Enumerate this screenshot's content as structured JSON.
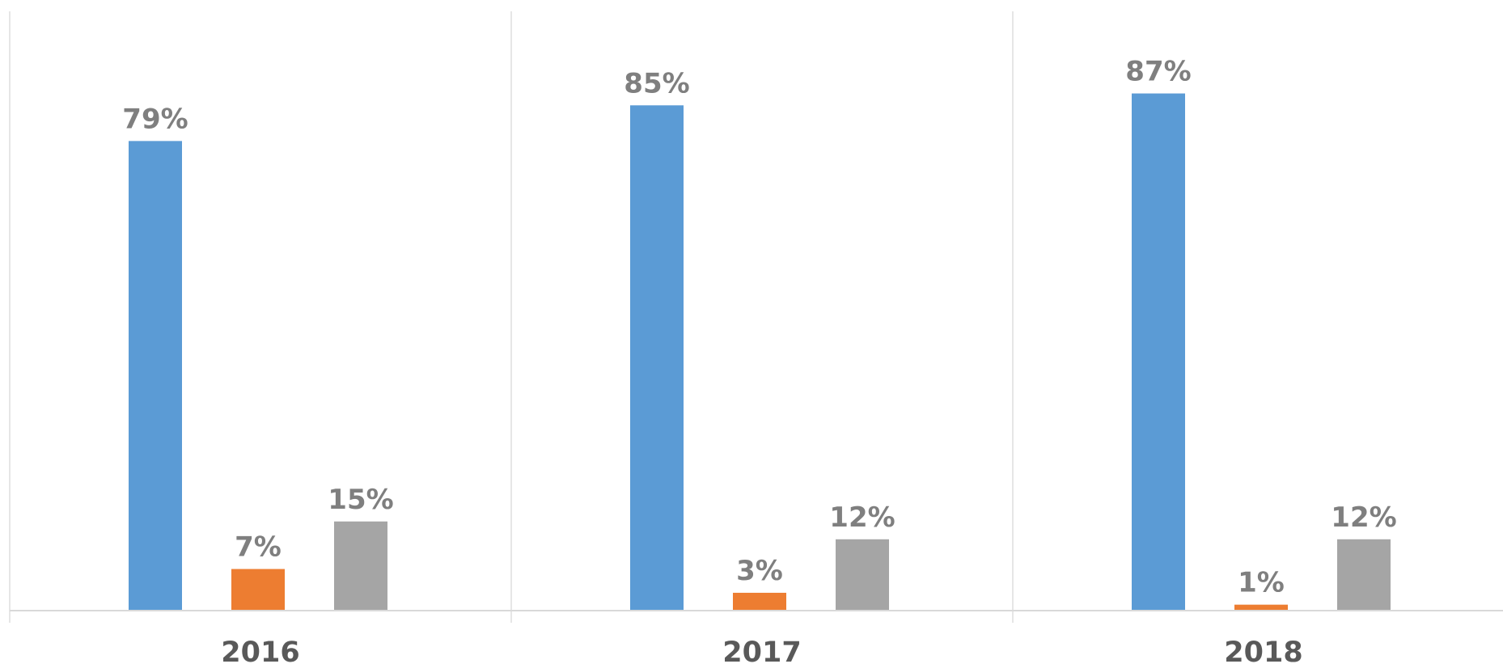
{
  "chart_data": {
    "type": "bar",
    "categories": [
      "2016",
      "2017",
      "2018"
    ],
    "series": [
      {
        "color": "#5B9BD5",
        "values": [
          79,
          85,
          87
        ]
      },
      {
        "color": "#ED7D31",
        "values": [
          7,
          3,
          1
        ]
      },
      {
        "color": "#A5A5A5",
        "values": [
          15,
          12,
          12
        ]
      }
    ],
    "data_labels": [
      [
        "79%",
        "85%",
        "87%"
      ],
      [
        "7%",
        "3%",
        "1%"
      ],
      [
        "15%",
        "12%",
        "12%"
      ]
    ],
    "ylim": [
      0,
      100
    ],
    "value_unit": "%",
    "grid": false,
    "legend": "none",
    "category_separators": true,
    "colors": {
      "axis": "#D9D9D9",
      "separator": "#E6E6E6",
      "data_label": "#7F7F7F",
      "tick_label": "#595959"
    }
  }
}
